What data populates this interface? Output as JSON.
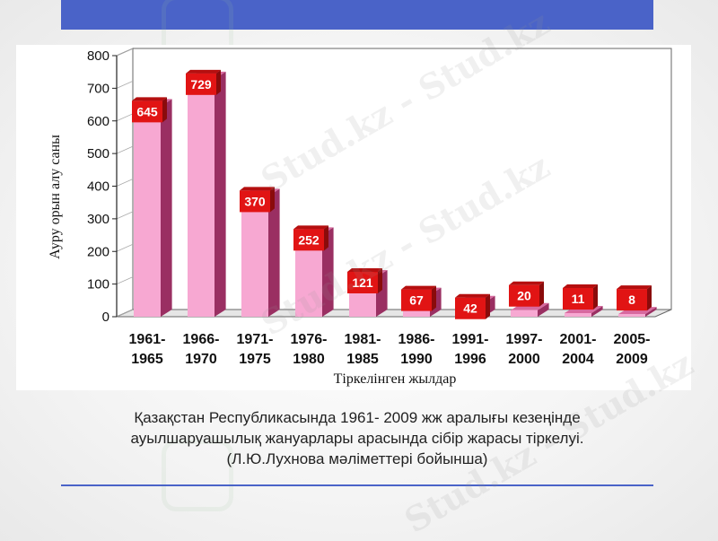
{
  "watermark": {
    "text": "Stud.kz - Stud.kz"
  },
  "caption": {
    "line1": "Қазақстан Республикасында 1961- 2009 жж аралығы кезеңінде",
    "line2": "ауылшаруашылық жануарлары арасында сібір жарасы тіркелуі.",
    "line3": "(Л.Ю.Лухнова мәліметтері бойынша)"
  },
  "chart_data": {
    "type": "bar",
    "categories": [
      [
        "1961-",
        "1965"
      ],
      [
        "1966-",
        "1970"
      ],
      [
        "1971-",
        "1975"
      ],
      [
        "1976-",
        "1980"
      ],
      [
        "1981-",
        "1985"
      ],
      [
        "1986-",
        "1990"
      ],
      [
        "1991-",
        "1996"
      ],
      [
        "1997-",
        "2000"
      ],
      [
        "2001-",
        "2004"
      ],
      [
        "2005-",
        "2009"
      ]
    ],
    "values": [
      645,
      729,
      370,
      252,
      121,
      67,
      42,
      20,
      11,
      8
    ],
    "ylabel": "Ауру орын алу саны",
    "xlabel": "Тіркелінген жылдар",
    "ylim": [
      0,
      800
    ],
    "yticks": [
      0,
      100,
      200,
      300,
      400,
      500,
      600,
      700,
      800
    ],
    "style": "3d",
    "colors": {
      "bar_front": "#f7a8d2",
      "bar_side": "#9a2f62",
      "bar_top": "#d8699f",
      "label_box": "#e11414"
    }
  }
}
